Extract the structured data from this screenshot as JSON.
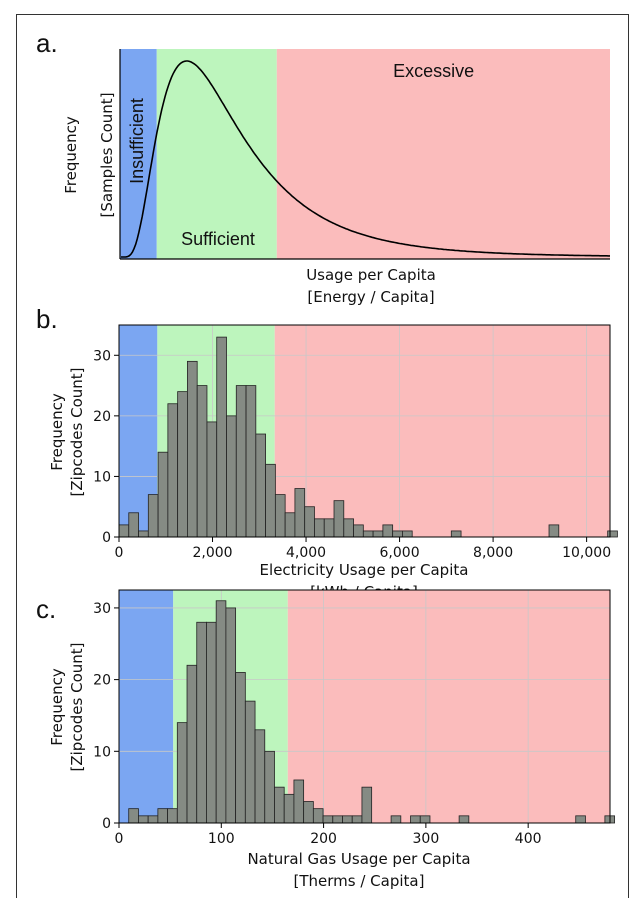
{
  "colors": {
    "insufficient": "#7ba6f2",
    "sufficient": "#bdf5bd",
    "excessive": "#fbbcbc",
    "bar": "#858b84",
    "grid": "#c8c8c8"
  },
  "chart_data": [
    {
      "panel": "a.",
      "type": "area",
      "title": "",
      "xlabel": [
        "Usage per Capita",
        "[Energy / Capita]"
      ],
      "ylabel": [
        "Frequency",
        "[Samples Count]"
      ],
      "regions": [
        {
          "label": "Insufficient",
          "from": 0,
          "to": 0.075
        },
        {
          "label": "Sufficient",
          "from": 0.075,
          "to": 0.32
        },
        {
          "label": "Excessive",
          "from": 0.32,
          "to": 1
        }
      ],
      "curve": {
        "peak_x": 0.18,
        "note": "log-normal-like distribution"
      },
      "grid": false
    },
    {
      "panel": "b.",
      "type": "bar",
      "title": "",
      "xlabel": [
        "Electricity Usage per Capita",
        "[kWh / Capita]"
      ],
      "ylabel": [
        "Frequency",
        "[Zipcodes Count]"
      ],
      "xlim": [
        0,
        10500
      ],
      "ylim": [
        0,
        35
      ],
      "xticks": [
        0,
        2000,
        4000,
        6000,
        8000,
        10000
      ],
      "xtick_labels": [
        "0",
        "2,000",
        "4,000",
        "6,000",
        "8,000",
        "10,000"
      ],
      "yticks": [
        0,
        10,
        20,
        30
      ],
      "ytick_labels": [
        "0",
        "10",
        "20",
        "30"
      ],
      "regions": [
        {
          "label": "Insufficient",
          "from": 0,
          "to": 820
        },
        {
          "label": "Sufficient",
          "from": 820,
          "to": 3330
        },
        {
          "label": "Excessive",
          "from": 3330,
          "to": 10500
        }
      ],
      "bin_width": 209,
      "bin_start": 0,
      "values": [
        2,
        4,
        1,
        7,
        14,
        22,
        24,
        29,
        25,
        19,
        33,
        20,
        25,
        25,
        17,
        12,
        7,
        4,
        8,
        5,
        3,
        3,
        6,
        3,
        2,
        1,
        1,
        2,
        1,
        1,
        0,
        0,
        0,
        0,
        1,
        0,
        0,
        0,
        0,
        0,
        0,
        0,
        0,
        0,
        2,
        0,
        0,
        0,
        0,
        0,
        1
      ],
      "grid": true
    },
    {
      "panel": "c.",
      "type": "bar",
      "title": "",
      "xlabel": [
        "Natural Gas Usage per Capita",
        "[Therms / Capita]"
      ],
      "ylabel": [
        "Frequency",
        "[Zipcodes Count]"
      ],
      "xlim": [
        0,
        480
      ],
      "ylim": [
        0,
        32.5
      ],
      "xticks": [
        0,
        100,
        200,
        300,
        400
      ],
      "xtick_labels": [
        "0",
        "100",
        "200",
        "300",
        "400"
      ],
      "yticks": [
        0,
        10,
        20,
        30
      ],
      "ytick_labels": [
        "0",
        "10",
        "20",
        "30"
      ],
      "regions": [
        {
          "label": "Insufficient",
          "from": 0,
          "to": 53
        },
        {
          "label": "Sufficient",
          "from": 53,
          "to": 165
        },
        {
          "label": "Excessive",
          "from": 165,
          "to": 480
        }
      ],
      "bin_width": 9.5,
      "bin_start": 0,
      "values": [
        0,
        2,
        1,
        1,
        2,
        2,
        14,
        22,
        28,
        28,
        31,
        30,
        21,
        17,
        13,
        10,
        5,
        4,
        6,
        3,
        2,
        1,
        1,
        1,
        1,
        5,
        0,
        0,
        1,
        0,
        1,
        1,
        0,
        0,
        0,
        1,
        0,
        0,
        0,
        0,
        0,
        0,
        0,
        0,
        0,
        0,
        0,
        1,
        0,
        0,
        1
      ],
      "grid": true
    }
  ]
}
